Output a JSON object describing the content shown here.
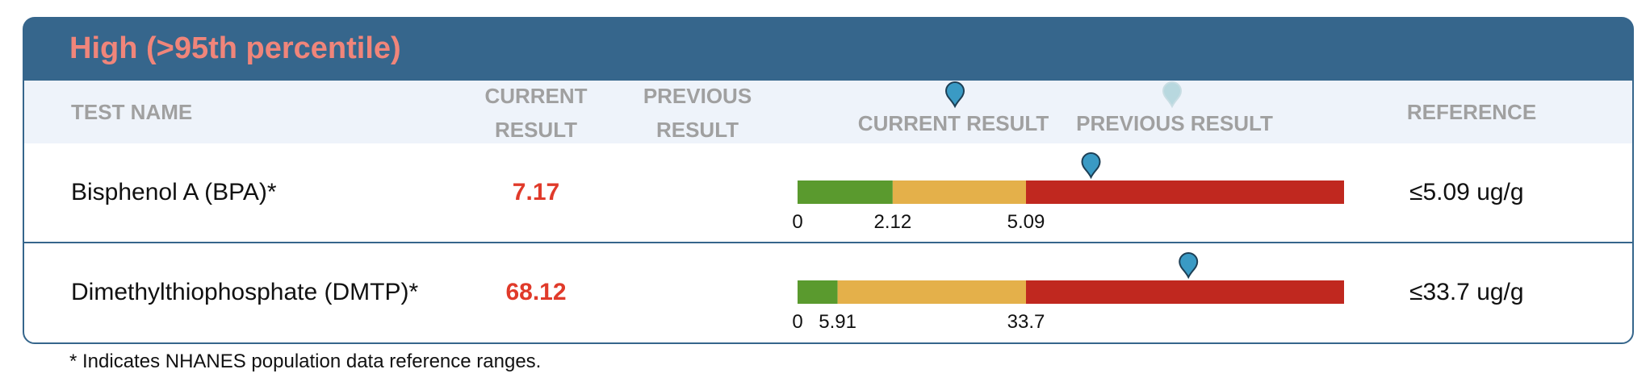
{
  "header": {
    "title": "High (>95th percentile)"
  },
  "columns": {
    "test_name": "TEST NAME",
    "current_result": "CURRENT RESULT",
    "previous_result": "PREVIOUS RESULT",
    "legend_current": "CURRENT RESULT",
    "legend_previous": "PREVIOUS RESULT",
    "reference": "REFERENCE"
  },
  "rows": [
    {
      "name": "Bisphenol A (BPA)*",
      "current": 7.17,
      "range_ticks": [
        0,
        2.12,
        5.09
      ],
      "reference": "≤5.09 ug/g"
    },
    {
      "name": "Dimethylthiophosphate (DMTP)*",
      "current": 68.12,
      "range_ticks": [
        0,
        5.91,
        33.7
      ],
      "reference": "≤33.7 ug/g"
    }
  ],
  "footnote": "* Indicates NHANES population data reference ranges."
}
